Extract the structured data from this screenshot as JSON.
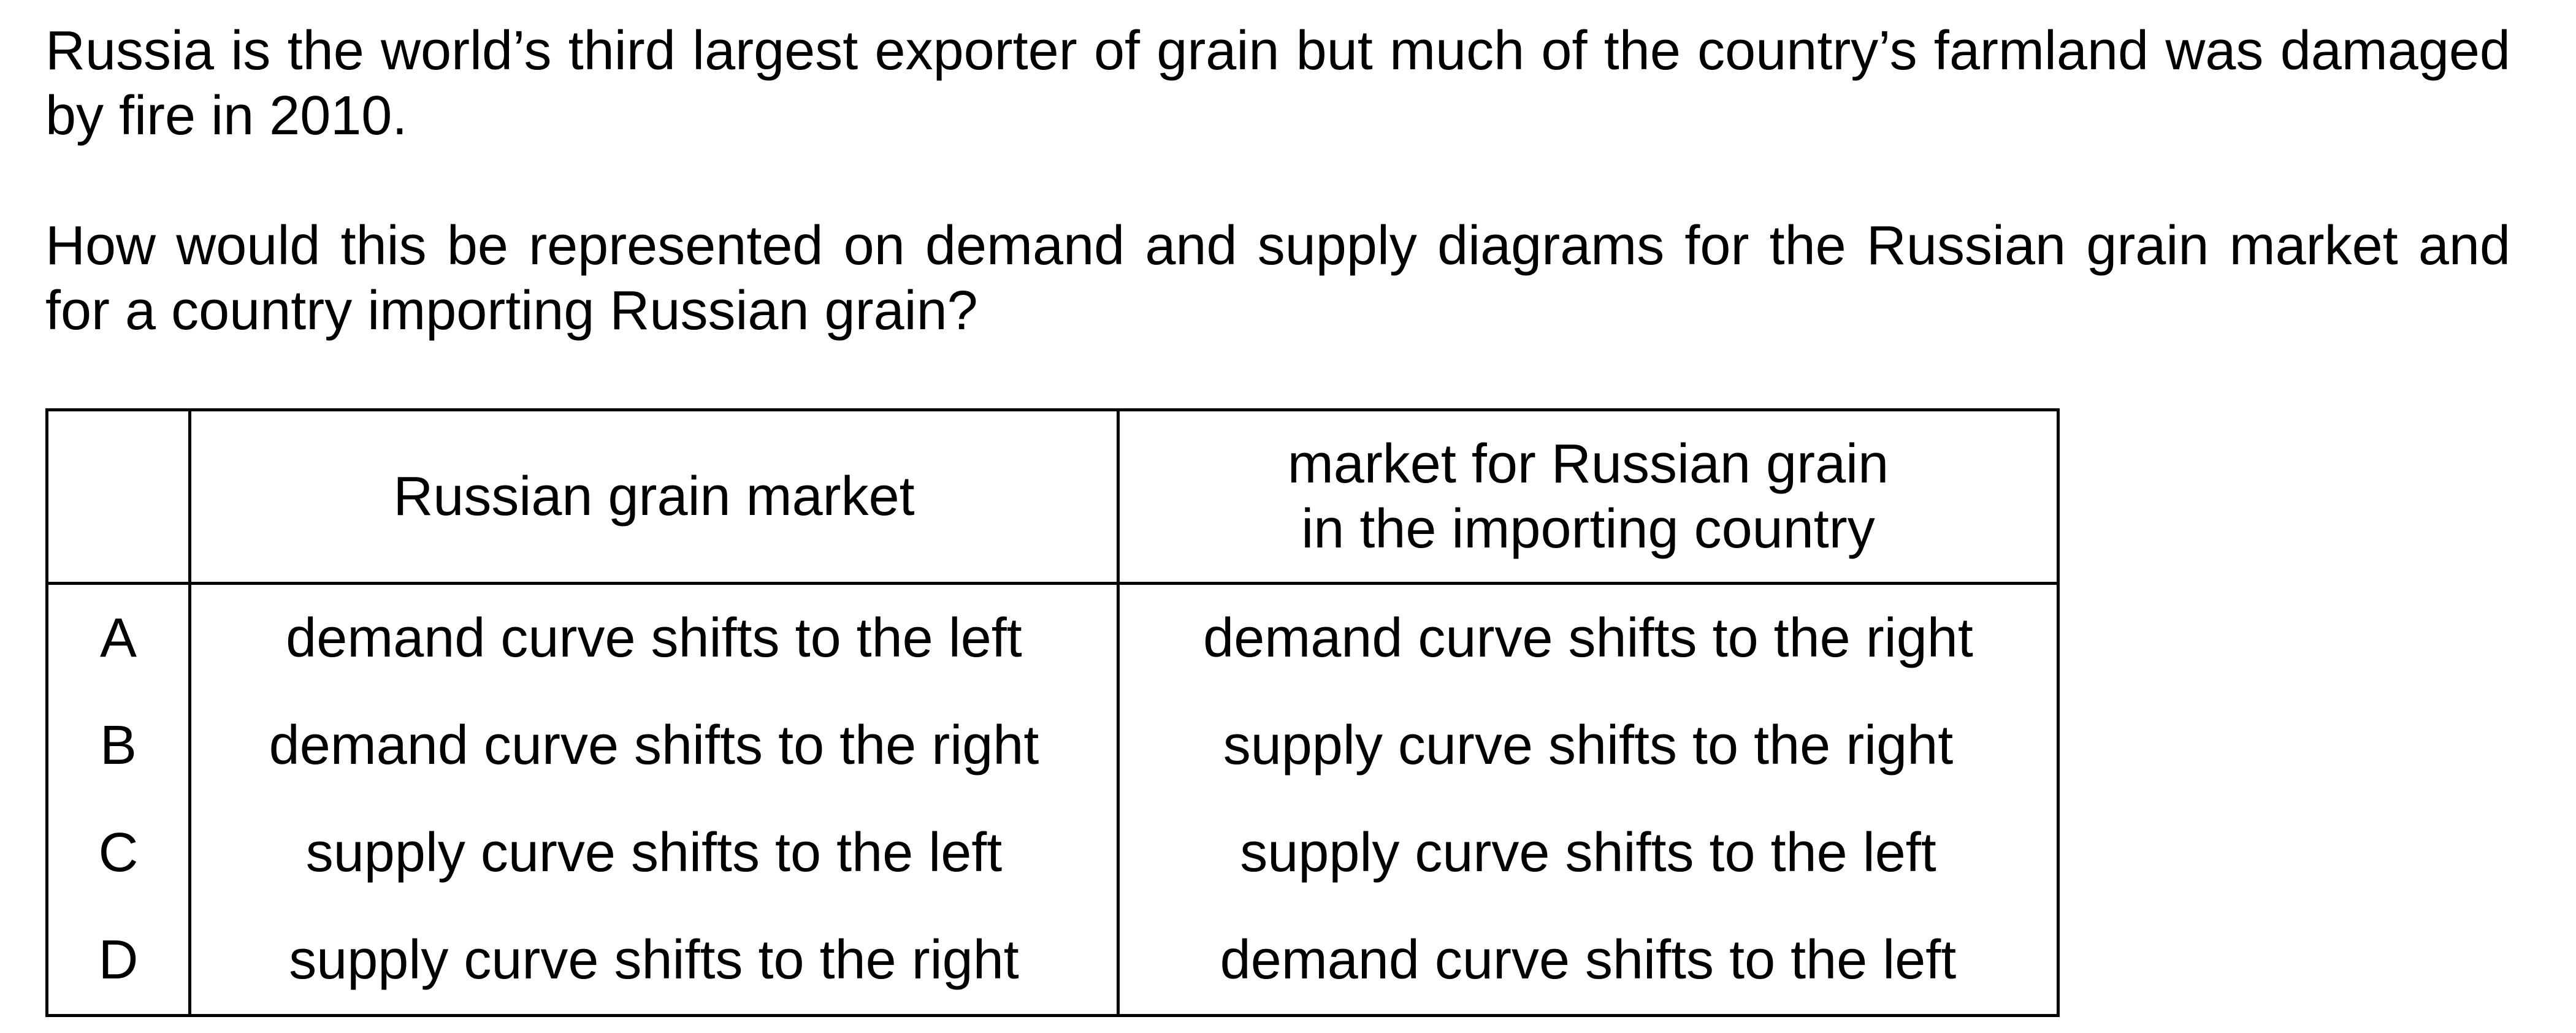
{
  "question": {
    "paragraph1": "Russia is the world’s third largest exporter of grain but much of the country’s farmland was damaged by fire in 2010.",
    "paragraph2": "How would this be represented on demand and supply diagrams for the Russian grain market and for a country importing Russian grain?"
  },
  "table": {
    "header": {
      "col0": "",
      "col1": "Russian grain market",
      "col2_line1": "market for Russian grain",
      "col2_line2": "in the importing country"
    },
    "rows": [
      {
        "letter": "A",
        "russian": "demand curve shifts to the left",
        "importing": "demand curve shifts to the right"
      },
      {
        "letter": "B",
        "russian": "demand curve shifts to the right",
        "importing": "supply curve shifts to the right"
      },
      {
        "letter": "C",
        "russian": "supply curve shifts to the left",
        "importing": "supply curve shifts to the left"
      },
      {
        "letter": "D",
        "russian": "supply curve shifts to the right",
        "importing": "demand curve shifts to the left"
      }
    ]
  }
}
